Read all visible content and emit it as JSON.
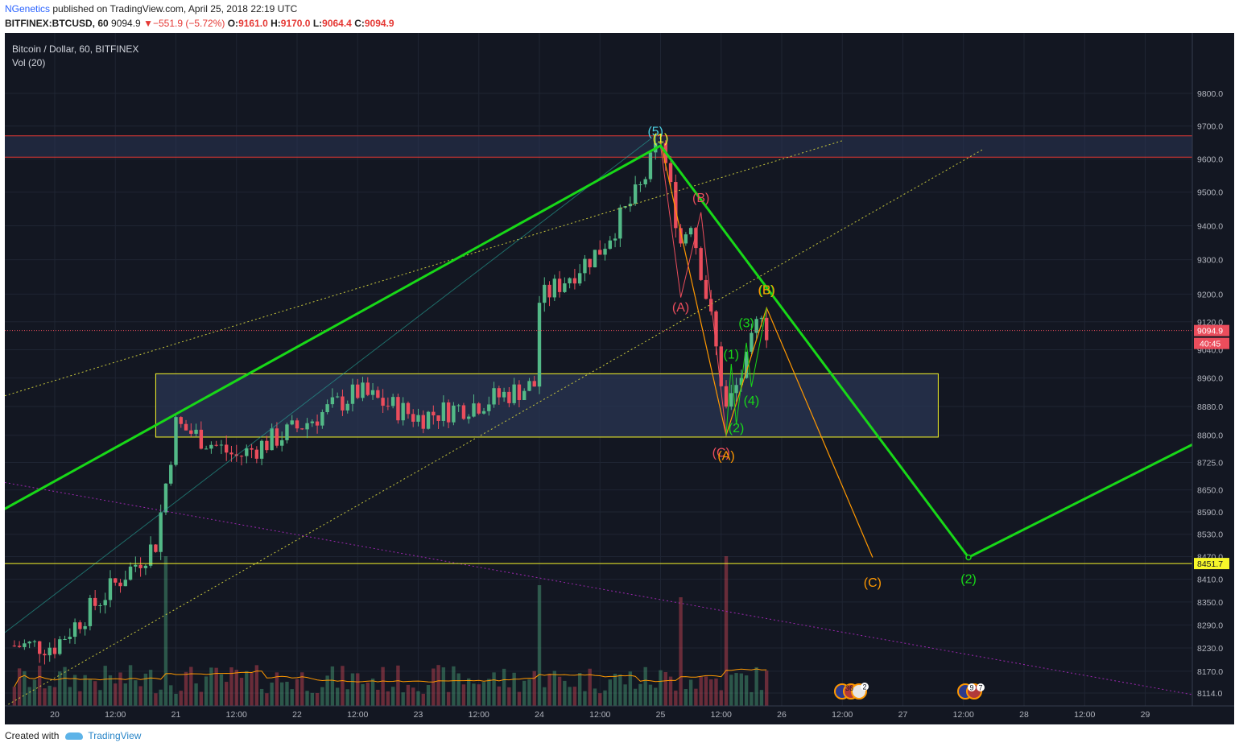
{
  "header": {
    "author": "NGenetics",
    "published": "published on TradingView.com, April 25, 2018 22:19 UTC",
    "symbol": "BITFINEX:BTCUSD, 60",
    "last": "9094.9",
    "change": "−551.9 (−5.72%)",
    "ohlc_labels": [
      "O:",
      "H:",
      "L:",
      "C:"
    ],
    "ohlc_values": [
      "9161.0",
      "9170.0",
      "9064.4",
      "9094.9"
    ]
  },
  "legend": {
    "title": "Bitcoin / Dollar, 60, BITFINEX",
    "volume": "Vol (20)"
  },
  "footer": {
    "created": "Created with",
    "brand": "TradingView"
  },
  "price_tags": {
    "last": "9094.9",
    "countdown": "40:45",
    "support": "8451.7"
  },
  "events": [
    {
      "left": "36",
      "right": "2"
    },
    {
      "left": "9",
      "right": "7"
    }
  ],
  "colors": {
    "background": "#131722",
    "up": "#53b987",
    "down": "#eb4d5c",
    "wave_line": "#18d818",
    "resistance": "#e53935",
    "support": "#f7f72a",
    "corrective": "#ff9800",
    "volume_ma": "#ff9800",
    "channel": "#c9c93c",
    "downtrend": "#9c27b0"
  },
  "chart_data": {
    "type": "candlestick",
    "title": "Bitcoin / Dollar, 60, BITFINEX",
    "interval": "60",
    "x_ticks": [
      "20",
      "12:00",
      "21",
      "12:00",
      "22",
      "12:00",
      "23",
      "12:00",
      "24",
      "12:00",
      "25",
      "12:00",
      "26",
      "12:00",
      "27",
      "12:00",
      "28",
      "12:00",
      "29"
    ],
    "y_ticks": [
      9800,
      9700,
      9600,
      9500,
      9400,
      9300,
      9200,
      9120,
      9040,
      8960,
      8880,
      8800,
      8725,
      8650,
      8590,
      8530,
      8470,
      8410,
      8350,
      8290,
      8230,
      8170,
      8114
    ],
    "ylim": [
      8080,
      9860
    ],
    "price_scale": "log",
    "last_price": 9094.9,
    "support_level": 8451.7,
    "resistance_zone": [
      9605,
      9670
    ],
    "consolidation_zone": {
      "from": "Apr 20 20:00",
      "to": "Apr 27 07:00",
      "low": 8795,
      "high": 8972
    },
    "anchors": [
      {
        "time": "Apr 20 00:00",
        "price": 8236
      },
      {
        "time": "Apr 20 20:00",
        "price": 8505
      },
      {
        "time": "Apr 21 00:00",
        "price": 8830
      },
      {
        "time": "Apr 21 12:00",
        "price": 8740
      },
      {
        "time": "Apr 22 00:00",
        "price": 8820
      },
      {
        "time": "Apr 22 12:00",
        "price": 8920
      },
      {
        "time": "Apr 23 00:00",
        "price": 8850
      },
      {
        "time": "Apr 23 12:00",
        "price": 8890
      },
      {
        "time": "Apr 23 23:00",
        "price": 8940
      },
      {
        "time": "Apr 24 00:00",
        "price": 9180
      },
      {
        "time": "Apr 24 12:00",
        "price": 9330
      },
      {
        "time": "Apr 24 20:00",
        "price": 9510
      },
      {
        "time": "Apr 25 00:00",
        "price": 9660
      },
      {
        "time": "Apr 25 04:00",
        "price": 9350
      },
      {
        "time": "Apr 25 06:00",
        "price": 9420
      },
      {
        "time": "Apr 25 10:00",
        "price": 9125
      },
      {
        "time": "Apr 25 13:00",
        "price": 8870
      },
      {
        "time": "Apr 25 17:00",
        "price": 9000
      },
      {
        "time": "Apr 25 20:00",
        "price": 9161
      },
      {
        "time": "Apr 25 21:00",
        "price": 9094.9
      }
    ],
    "volume_spikes": [
      {
        "time": "Apr 20 22:00",
        "rel": 0.62
      },
      {
        "time": "Apr 24 00:00",
        "rel": 0.5
      },
      {
        "time": "Apr 25 04:00",
        "rel": 0.45
      },
      {
        "time": "Apr 25 13:00",
        "rel": 0.62
      }
    ],
    "wave_labels": [
      {
        "text": "(5)",
        "time": "Apr 24 23:00",
        "price": 9670,
        "color": "#4dd0e1"
      },
      {
        "text": "(1)",
        "time": "Apr 25 00:00",
        "price": 9650,
        "color": "#f7f72a"
      },
      {
        "text": "(A)",
        "time": "Apr 25 04:00",
        "price": 9150,
        "color": "#eb4d5c"
      },
      {
        "text": "(B)",
        "time": "Apr 25 08:00",
        "price": 9470,
        "color": "#eb4d5c"
      },
      {
        "text": "(C)",
        "time": "Apr 25 12:00",
        "price": 8740,
        "color": "#eb4d5c"
      },
      {
        "text": "(A)",
        "time": "Apr 25 13:00",
        "price": 8732,
        "color": "#ff9800"
      },
      {
        "text": "(1)",
        "time": "Apr 25 14:00",
        "price": 9015,
        "color": "#18d818"
      },
      {
        "text": "(2)",
        "time": "Apr 25 15:00",
        "price": 8808,
        "color": "#18d818"
      },
      {
        "text": "(3)",
        "time": "Apr 25 17:00",
        "price": 9105,
        "color": "#18d818"
      },
      {
        "text": "(4)",
        "time": "Apr 25 18:00",
        "price": 8885,
        "color": "#18d818"
      },
      {
        "text": "(5)",
        "time": "Apr 25 21:00",
        "price": 9200,
        "color": "#18d818"
      },
      {
        "text": "(B)",
        "time": "Apr 25 21:00",
        "price": 9200,
        "color": "#ff9800"
      },
      {
        "text": "(C)",
        "time": "Apr 26 18:00",
        "price": 8390,
        "color": "#ff9800"
      },
      {
        "text": "(2)",
        "time": "Apr 27 13:00",
        "price": 8400,
        "color": "#18d818"
      }
    ],
    "wave_path": [
      {
        "time": "Apr 19 13:00",
        "price": 8590
      },
      {
        "time": "Apr 25 00:00",
        "price": 9640
      },
      {
        "time": "Apr 27 13:00",
        "price": 8468
      },
      {
        "time": "Apr 29 13:00",
        "price": 8800
      }
    ],
    "corrective_path": [
      {
        "time": "Apr 25 00:00",
        "price": 9650
      },
      {
        "time": "Apr 25 13:00",
        "price": 8800
      },
      {
        "time": "Apr 25 21:00",
        "price": 9160
      },
      {
        "time": "Apr 26 18:00",
        "price": 8468
      }
    ]
  }
}
